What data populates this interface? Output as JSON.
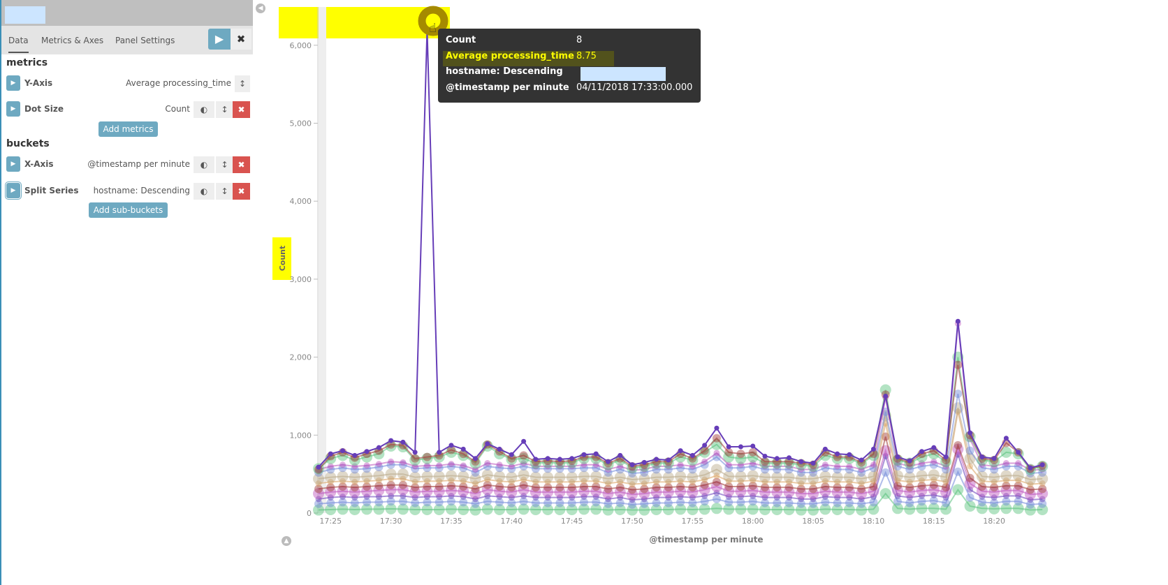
{
  "sidebar": {
    "tabs": [
      {
        "label": "Data",
        "active": true
      },
      {
        "label": "Metrics & Axes"
      },
      {
        "label": "Panel Settings"
      }
    ],
    "apply_icon": "play-icon",
    "discard_icon": "close-icon",
    "metrics_title": "metrics",
    "metrics": [
      {
        "label": "Y-Axis",
        "value": "Average processing_time"
      },
      {
        "label": "Dot Size",
        "value": "Count"
      }
    ],
    "add_metrics": "Add metrics",
    "buckets_title": "buckets",
    "buckets": [
      {
        "label": "X-Axis",
        "value": "@timestamp per minute"
      },
      {
        "label": "Split Series",
        "value": "hostname: Descending"
      }
    ],
    "add_sub_buckets": "Add sub-buckets"
  },
  "tooltip": {
    "rows": [
      {
        "key": "Count",
        "value": "8"
      },
      {
        "key": "Average processing_time",
        "value": "8.75"
      },
      {
        "key": "hostname: Descending",
        "value": ""
      },
      {
        "key": "@timestamp per minute",
        "value": "04/11/2018 17:33:00.000"
      }
    ]
  },
  "chart_data": {
    "type": "line",
    "xlabel": "@timestamp per minute",
    "ylabel": "Count",
    "x_start": "17:24",
    "x_step_minutes": 1,
    "x_ticks": [
      "17:25",
      "17:30",
      "17:35",
      "17:40",
      "17:45",
      "17:50",
      "17:55",
      "18:00",
      "18:05",
      "18:10",
      "18:15",
      "18:20"
    ],
    "y_ticks": [
      0,
      1000,
      2000,
      3000,
      4000,
      5000,
      6000
    ],
    "ylim": [
      0,
      6300
    ],
    "grid": false,
    "highlight_color": "#ffff00",
    "series": [
      {
        "color": "#57c17b",
        "values": [
          40,
          45,
          50,
          45,
          50,
          50,
          55,
          50,
          45,
          45,
          45,
          50,
          45,
          40,
          50,
          45,
          45,
          50,
          45,
          45,
          45,
          45,
          50,
          50,
          40,
          45,
          40,
          40,
          45,
          45,
          50,
          45,
          50,
          60,
          50,
          50,
          50,
          45,
          45,
          45,
          40,
          40,
          50,
          45,
          45,
          40,
          50,
          250,
          60,
          50,
          60,
          60,
          50,
          300,
          90,
          60,
          55,
          60,
          60,
          40,
          45
        ]
      },
      {
        "color": "#6f87d8",
        "values": [
          120,
          130,
          140,
          130,
          140,
          140,
          150,
          150,
          130,
          140,
          140,
          150,
          140,
          120,
          150,
          140,
          130,
          150,
          130,
          130,
          130,
          130,
          140,
          140,
          120,
          130,
          110,
          120,
          130,
          130,
          140,
          130,
          150,
          180,
          140,
          140,
          150,
          130,
          130,
          130,
          120,
          120,
          140,
          130,
          130,
          120,
          140,
          520,
          150,
          130,
          150,
          160,
          130,
          530,
          200,
          140,
          130,
          150,
          150,
          110,
          120
        ]
      },
      {
        "color": "#663db8",
        "values": [
          180,
          200,
          210,
          200,
          210,
          210,
          220,
          220,
          200,
          210,
          210,
          220,
          210,
          180,
          220,
          210,
          200,
          220,
          200,
          200,
          200,
          200,
          210,
          210,
          180,
          200,
          170,
          180,
          200,
          200,
          210,
          200,
          220,
          260,
          210,
          210,
          220,
          200,
          200,
          200,
          180,
          180,
          210,
          200,
          200,
          180,
          210,
          730,
          220,
          200,
          220,
          230,
          200,
          750,
          300,
          210,
          200,
          220,
          220,
          170,
          180
        ]
      },
      {
        "color": "#bc52bc",
        "values": [
          250,
          270,
          280,
          270,
          280,
          290,
          300,
          300,
          270,
          280,
          280,
          290,
          280,
          250,
          300,
          280,
          270,
          300,
          270,
          270,
          270,
          270,
          280,
          280,
          250,
          270,
          240,
          250,
          270,
          270,
          280,
          270,
          300,
          340,
          280,
          280,
          290,
          270,
          270,
          270,
          250,
          250,
          280,
          270,
          270,
          250,
          280,
          800,
          290,
          270,
          290,
          300,
          270,
          820,
          380,
          280,
          270,
          290,
          290,
          240,
          250
        ]
      },
      {
        "color": "#9e3533",
        "values": [
          310,
          330,
          340,
          330,
          340,
          350,
          360,
          360,
          330,
          340,
          340,
          350,
          340,
          310,
          360,
          340,
          330,
          360,
          330,
          330,
          330,
          330,
          340,
          340,
          310,
          330,
          300,
          310,
          330,
          330,
          340,
          330,
          360,
          400,
          340,
          340,
          350,
          330,
          330,
          330,
          310,
          310,
          340,
          330,
          330,
          310,
          340,
          980,
          350,
          330,
          350,
          360,
          330,
          870,
          450,
          340,
          330,
          350,
          350,
          300,
          310
        ]
      },
      {
        "color": "#daa05d",
        "values": [
          380,
          400,
          410,
          400,
          410,
          420,
          440,
          440,
          400,
          410,
          410,
          420,
          410,
          380,
          430,
          410,
          400,
          430,
          400,
          400,
          400,
          400,
          410,
          410,
          380,
          400,
          370,
          380,
          400,
          400,
          410,
          400,
          430,
          480,
          410,
          410,
          420,
          400,
          400,
          400,
          380,
          380,
          410,
          400,
          400,
          380,
          410,
          1150,
          420,
          400,
          420,
          430,
          400,
          1300,
          600,
          410,
          400,
          420,
          420,
          370,
          380
        ]
      },
      {
        "color": "#b9a888",
        "values": [
          440,
          460,
          470,
          460,
          470,
          480,
          500,
          500,
          460,
          470,
          470,
          480,
          470,
          440,
          490,
          470,
          460,
          490,
          460,
          460,
          460,
          460,
          470,
          470,
          440,
          460,
          430,
          440,
          460,
          460,
          470,
          460,
          490,
          560,
          470,
          470,
          480,
          460,
          460,
          460,
          440,
          440,
          470,
          460,
          460,
          440,
          470,
          1250,
          480,
          460,
          480,
          490,
          460,
          1350,
          700,
          470,
          460,
          480,
          480,
          430,
          440
        ]
      },
      {
        "color": "#6f87d8",
        "values": [
          520,
          560,
          580,
          560,
          570,
          590,
          620,
          620,
          570,
          580,
          580,
          600,
          580,
          520,
          600,
          580,
          570,
          600,
          570,
          570,
          570,
          570,
          580,
          580,
          520,
          560,
          510,
          520,
          560,
          560,
          580,
          560,
          620,
          720,
          580,
          580,
          600,
          560,
          560,
          560,
          520,
          520,
          580,
          560,
          560,
          520,
          580,
          1300,
          600,
          560,
          600,
          620,
          560,
          1530,
          800,
          580,
          560,
          600,
          600,
          510,
          520
        ]
      },
      {
        "color": "#bc52bc",
        "values": [
          560,
          600,
          620,
          600,
          610,
          630,
          660,
          650,
          600,
          610,
          610,
          630,
          610,
          560,
          640,
          620,
          600,
          640,
          600,
          600,
          600,
          600,
          620,
          620,
          560,
          600,
          550,
          560,
          600,
          600,
          620,
          600,
          660,
          770,
          620,
          620,
          640,
          600,
          600,
          600,
          560,
          560,
          620,
          600,
          600,
          560,
          620,
          1480,
          640,
          600,
          640,
          660,
          600,
          2430,
          950,
          620,
          600,
          640,
          640,
          550,
          560
        ]
      },
      {
        "color": "#57c17b",
        "values": [
          570,
          700,
          740,
          680,
          720,
          760,
          860,
          850,
          680,
          700,
          720,
          780,
          740,
          640,
          860,
          760,
          690,
          700,
          640,
          650,
          640,
          650,
          700,
          700,
          620,
          680,
          580,
          600,
          640,
          640,
          720,
          680,
          780,
          880,
          720,
          700,
          720,
          640,
          640,
          640,
          620,
          600,
          740,
          700,
          700,
          630,
          740,
          1580,
          680,
          640,
          720,
          760,
          660,
          2000,
          980,
          680,
          660,
          780,
          760,
          560,
          600
        ]
      },
      {
        "color": "#9e3533",
        "values": [
          560,
          730,
          780,
          710,
          760,
          800,
          880,
          870,
          700,
          720,
          740,
          810,
          760,
          660,
          880,
          790,
          700,
          740,
          660,
          670,
          660,
          670,
          720,
          720,
          640,
          700,
          600,
          620,
          660,
          660,
          760,
          700,
          800,
          960,
          780,
          760,
          780,
          660,
          660,
          660,
          640,
          620,
          780,
          720,
          720,
          650,
          760,
          1520,
          700,
          650,
          760,
          800,
          680,
          1900,
          1000,
          700,
          680,
          900,
          780,
          570,
          610
        ]
      },
      {
        "color": "#663db8",
        "values": [
          590,
          760,
          800,
          740,
          790,
          840,
          930,
          910,
          780,
          6200,
          780,
          870,
          820,
          700,
          890,
          820,
          750,
          920,
          690,
          700,
          690,
          700,
          750,
          760,
          660,
          740,
          620,
          650,
          690,
          680,
          800,
          740,
          870,
          1090,
          850,
          850,
          860,
          730,
          700,
          710,
          660,
          640,
          820,
          760,
          750,
          680,
          820,
          1500,
          720,
          670,
          790,
          840,
          720,
          2460,
          1030,
          720,
          700,
          960,
          780,
          580,
          620
        ]
      }
    ]
  }
}
